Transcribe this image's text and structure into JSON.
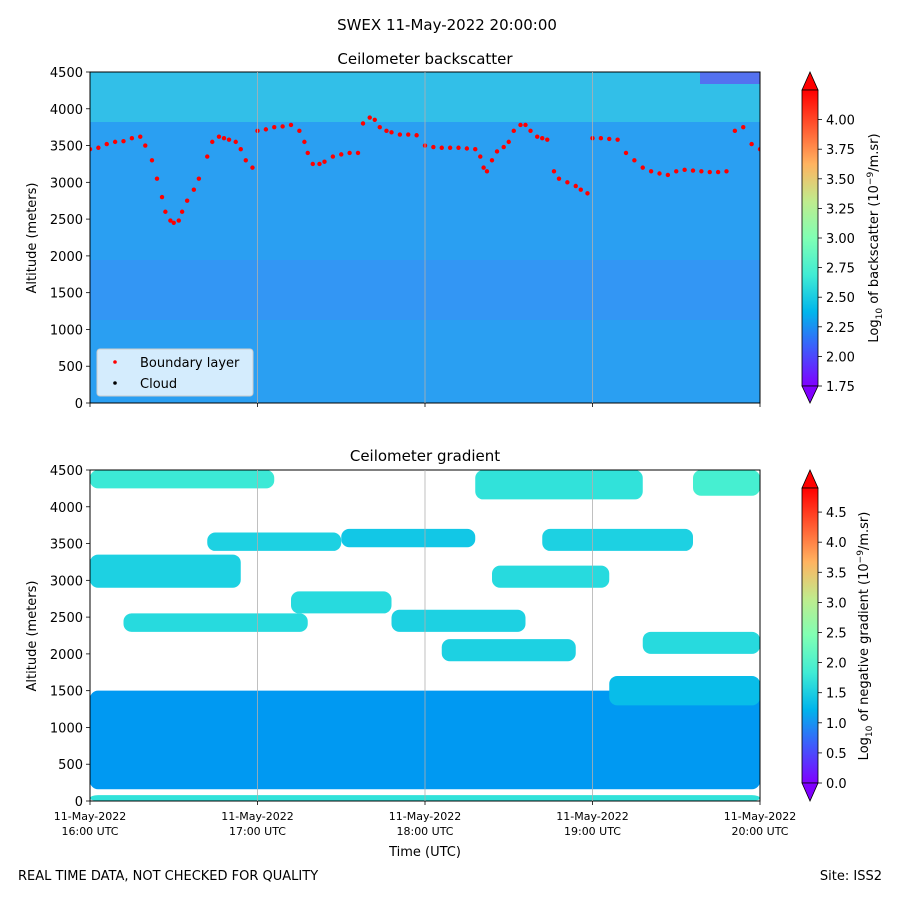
{
  "figure_title": "SWEX 11-May-2022 20:00:00",
  "footer_left": "REAL TIME DATA, NOT CHECKED FOR QUALITY",
  "footer_right": "Site: ISS2",
  "x_axis_label": "Time (UTC)",
  "chart_data": [
    {
      "type": "heatmap",
      "title": "Ceilometer backscatter",
      "ylabel": "Altitude (meters)",
      "ylim": [
        0,
        4500
      ],
      "yticks": [
        0,
        500,
        1000,
        1500,
        2000,
        2500,
        3000,
        3500,
        4000,
        4500
      ],
      "xlim_hours_utc": [
        16,
        20
      ],
      "xticks": [
        {
          "h": 16,
          "date": "11-May-2022",
          "time": "16:00 UTC"
        },
        {
          "h": 17,
          "date": "11-May-2022",
          "time": "17:00 UTC"
        },
        {
          "h": 18,
          "date": "11-May-2022",
          "time": "18:00 UTC"
        },
        {
          "h": 19,
          "date": "11-May-2022",
          "time": "19:00 UTC"
        },
        {
          "h": 20,
          "date": "11-May-2022",
          "time": "20:00 UTC"
        }
      ],
      "grid": "vertical",
      "colorbar": {
        "label_pre": "Log",
        "label_sub": "10",
        "label_post": " of backscatter (10",
        "label_sup": "−9",
        "label_end": "/m.sr)",
        "range": [
          1.75,
          4.25
        ],
        "ticks": [
          "4.00",
          "3.75",
          "3.50",
          "3.25",
          "3.00",
          "2.75",
          "2.50",
          "2.25",
          "2.00",
          "1.75"
        ],
        "extend": "both",
        "colormap": "rainbow"
      },
      "legend": {
        "location": "lower-left",
        "entries": [
          {
            "label": "Boundary layer",
            "color": "#ff0000"
          },
          {
            "label": "Cloud",
            "color": "#000000"
          }
        ]
      },
      "boundary_layer": [
        [
          16.0,
          3450
        ],
        [
          16.05,
          3470
        ],
        [
          16.1,
          3520
        ],
        [
          16.15,
          3550
        ],
        [
          16.2,
          3560
        ],
        [
          16.25,
          3600
        ],
        [
          16.3,
          3620
        ],
        [
          16.33,
          3500
        ],
        [
          16.37,
          3300
        ],
        [
          16.4,
          3050
        ],
        [
          16.43,
          2800
        ],
        [
          16.45,
          2600
        ],
        [
          16.48,
          2480
        ],
        [
          16.5,
          2450
        ],
        [
          16.53,
          2480
        ],
        [
          16.55,
          2600
        ],
        [
          16.58,
          2750
        ],
        [
          16.62,
          2900
        ],
        [
          16.65,
          3050
        ],
        [
          16.7,
          3350
        ],
        [
          16.73,
          3550
        ],
        [
          16.77,
          3620
        ],
        [
          16.8,
          3600
        ],
        [
          16.83,
          3580
        ],
        [
          16.87,
          3550
        ],
        [
          16.9,
          3450
        ],
        [
          16.93,
          3300
        ],
        [
          16.97,
          3200
        ],
        [
          17.0,
          3700
        ],
        [
          17.05,
          3720
        ],
        [
          17.1,
          3750
        ],
        [
          17.15,
          3760
        ],
        [
          17.2,
          3780
        ],
        [
          17.25,
          3700
        ],
        [
          17.28,
          3550
        ],
        [
          17.3,
          3400
        ],
        [
          17.33,
          3250
        ],
        [
          17.37,
          3250
        ],
        [
          17.4,
          3280
        ],
        [
          17.45,
          3350
        ],
        [
          17.5,
          3380
        ],
        [
          17.55,
          3400
        ],
        [
          17.6,
          3400
        ],
        [
          17.63,
          3800
        ],
        [
          17.67,
          3880
        ],
        [
          17.7,
          3850
        ],
        [
          17.73,
          3750
        ],
        [
          17.77,
          3700
        ],
        [
          17.8,
          3680
        ],
        [
          17.85,
          3650
        ],
        [
          17.9,
          3650
        ],
        [
          17.95,
          3640
        ],
        [
          18.0,
          3500
        ],
        [
          18.05,
          3480
        ],
        [
          18.1,
          3470
        ],
        [
          18.15,
          3470
        ],
        [
          18.2,
          3470
        ],
        [
          18.25,
          3460
        ],
        [
          18.3,
          3450
        ],
        [
          18.33,
          3350
        ],
        [
          18.35,
          3200
        ],
        [
          18.37,
          3150
        ],
        [
          18.4,
          3300
        ],
        [
          18.43,
          3420
        ],
        [
          18.47,
          3480
        ],
        [
          18.5,
          3550
        ],
        [
          18.53,
          3700
        ],
        [
          18.57,
          3780
        ],
        [
          18.6,
          3780
        ],
        [
          18.63,
          3700
        ],
        [
          18.67,
          3620
        ],
        [
          18.7,
          3600
        ],
        [
          18.73,
          3580
        ],
        [
          18.77,
          3150
        ],
        [
          18.8,
          3050
        ],
        [
          18.85,
          3000
        ],
        [
          18.9,
          2950
        ],
        [
          18.93,
          2900
        ],
        [
          18.97,
          2850
        ],
        [
          19.0,
          3600
        ],
        [
          19.05,
          3600
        ],
        [
          19.1,
          3590
        ],
        [
          19.15,
          3580
        ],
        [
          19.2,
          3400
        ],
        [
          19.25,
          3300
        ],
        [
          19.3,
          3200
        ],
        [
          19.35,
          3150
        ],
        [
          19.4,
          3120
        ],
        [
          19.45,
          3100
        ],
        [
          19.5,
          3150
        ],
        [
          19.55,
          3170
        ],
        [
          19.6,
          3160
        ],
        [
          19.65,
          3150
        ],
        [
          19.7,
          3140
        ],
        [
          19.75,
          3140
        ],
        [
          19.8,
          3150
        ],
        [
          19.85,
          3700
        ],
        [
          19.9,
          3750
        ],
        [
          19.95,
          3520
        ],
        [
          20.0,
          3450
        ]
      ]
    },
    {
      "type": "heatmap",
      "title": "Ceilometer gradient",
      "ylabel": "Altitude (meters)",
      "ylim": [
        0,
        4500
      ],
      "yticks": [
        0,
        500,
        1000,
        1500,
        2000,
        2500,
        3000,
        3500,
        4000,
        4500
      ],
      "xlim_hours_utc": [
        16,
        20
      ],
      "grid": "vertical",
      "colorbar": {
        "label_pre": "Log",
        "label_sub": "10",
        "label_post": " of negative gradient (10",
        "label_sup": "−9",
        "label_end": "/m.sr)",
        "range": [
          0.0,
          4.9
        ],
        "ticks": [
          "4.5",
          "4.0",
          "3.5",
          "3.0",
          "2.5",
          "2.0",
          "1.5",
          "1.0",
          "0.5",
          "0.0"
        ],
        "extend": "both",
        "colormap": "rainbow"
      },
      "gradient_layers": [
        {
          "t0": 16.0,
          "t1": 20.0,
          "z0": 160,
          "z1": 1500,
          "v": 1.0
        },
        {
          "t0": 16.0,
          "t1": 20.0,
          "z0": 0,
          "z1": 80,
          "v": 1.7
        },
        {
          "t0": 16.0,
          "t1": 16.9,
          "z0": 2900,
          "z1": 3350,
          "v": 1.5
        },
        {
          "t0": 16.2,
          "t1": 17.3,
          "z0": 2300,
          "z1": 2550,
          "v": 1.6
        },
        {
          "t0": 17.2,
          "t1": 17.8,
          "z0": 2550,
          "z1": 2850,
          "v": 1.6
        },
        {
          "t0": 16.7,
          "t1": 17.5,
          "z0": 3400,
          "z1": 3650,
          "v": 1.5
        },
        {
          "t0": 17.5,
          "t1": 18.3,
          "z0": 3450,
          "z1": 3700,
          "v": 1.4
        },
        {
          "t0": 17.8,
          "t1": 18.6,
          "z0": 2300,
          "z1": 2600,
          "v": 1.5
        },
        {
          "t0": 18.1,
          "t1": 18.9,
          "z0": 1900,
          "z1": 2200,
          "v": 1.5
        },
        {
          "t0": 18.4,
          "t1": 19.1,
          "z0": 2900,
          "z1": 3200,
          "v": 1.6
        },
        {
          "t0": 18.7,
          "t1": 19.6,
          "z0": 3400,
          "z1": 3700,
          "v": 1.5
        },
        {
          "t0": 19.1,
          "t1": 20.0,
          "z0": 1300,
          "z1": 1700,
          "v": 1.3
        },
        {
          "t0": 19.3,
          "t1": 20.0,
          "z0": 2000,
          "z1": 2300,
          "v": 1.6
        },
        {
          "t0": 18.3,
          "t1": 19.3,
          "z0": 4100,
          "z1": 4500,
          "v": 1.7
        },
        {
          "t0": 16.0,
          "t1": 17.1,
          "z0": 4250,
          "z1": 4500,
          "v": 1.8
        },
        {
          "t0": 19.6,
          "t1": 20.0,
          "z0": 4150,
          "z1": 4500,
          "v": 1.9
        }
      ]
    }
  ]
}
